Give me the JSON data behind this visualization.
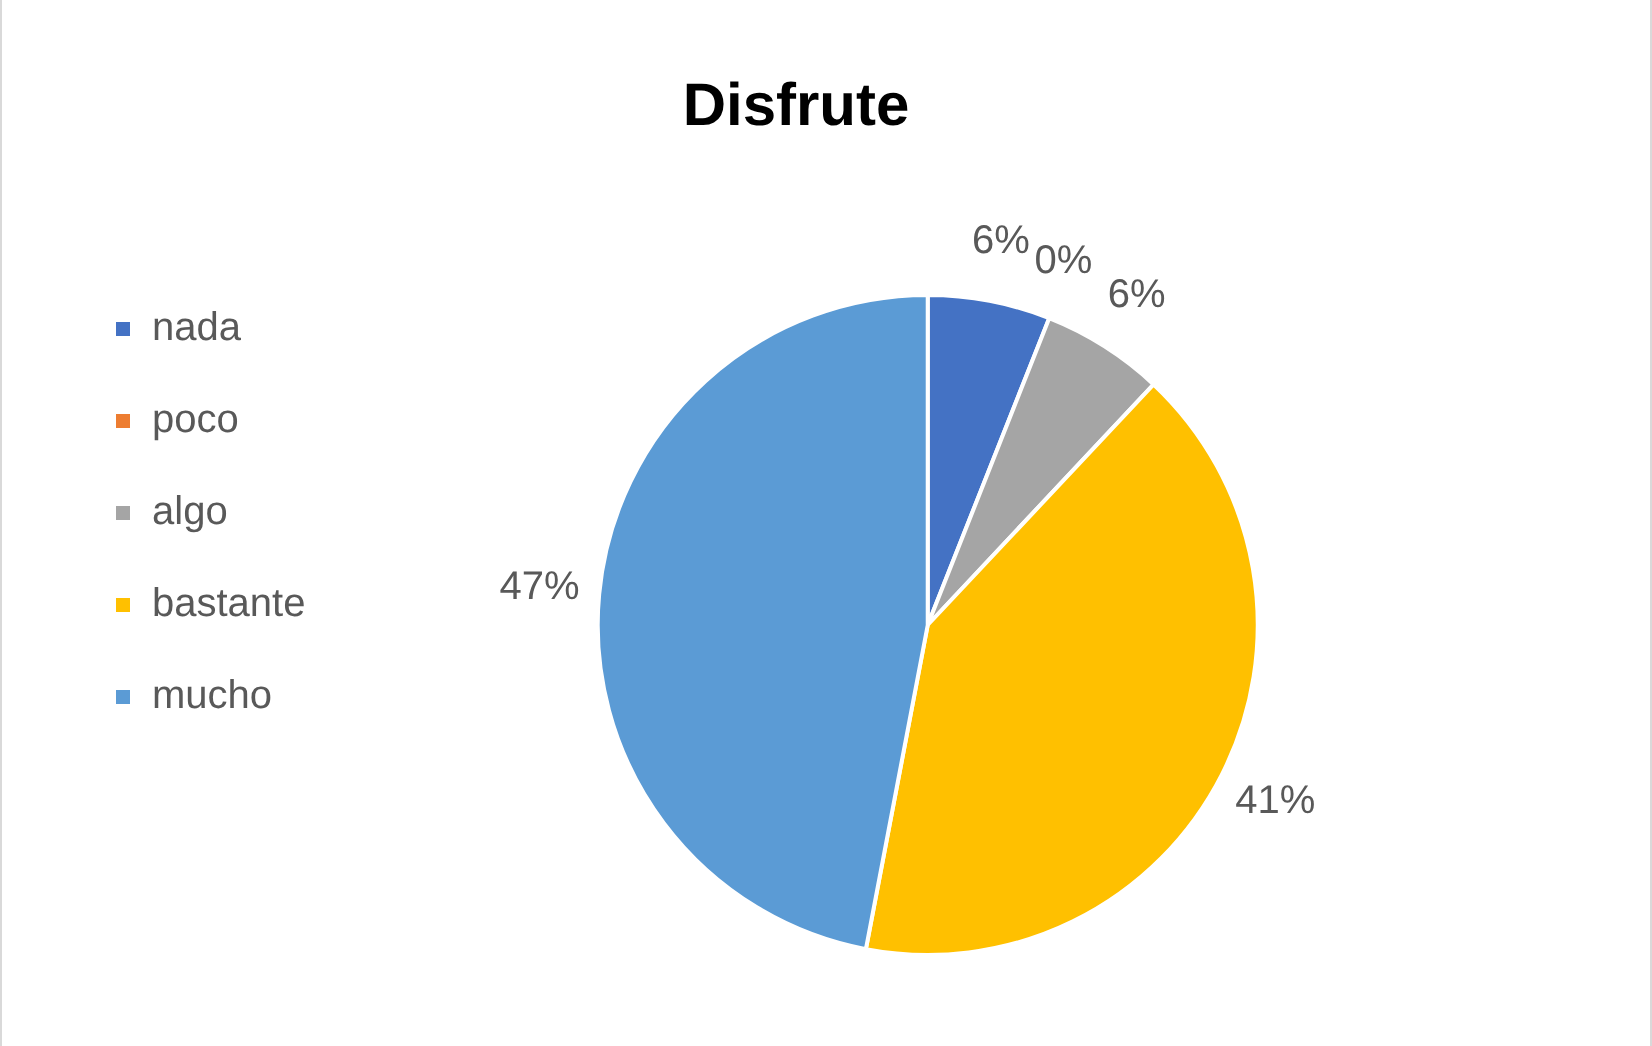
{
  "chart_data": {
    "type": "pie",
    "title": "Disfrute",
    "categories": [
      "nada",
      "poco",
      "algo",
      "bastante",
      "mucho"
    ],
    "values": [
      6,
      0,
      6,
      41,
      47
    ],
    "colors": [
      "#4472c4",
      "#ed7d31",
      "#a5a5a5",
      "#ffc000",
      "#5b9bd5"
    ],
    "value_labels": [
      "6%",
      "0%",
      "6%",
      "41%",
      "47%"
    ],
    "legend": "left"
  }
}
